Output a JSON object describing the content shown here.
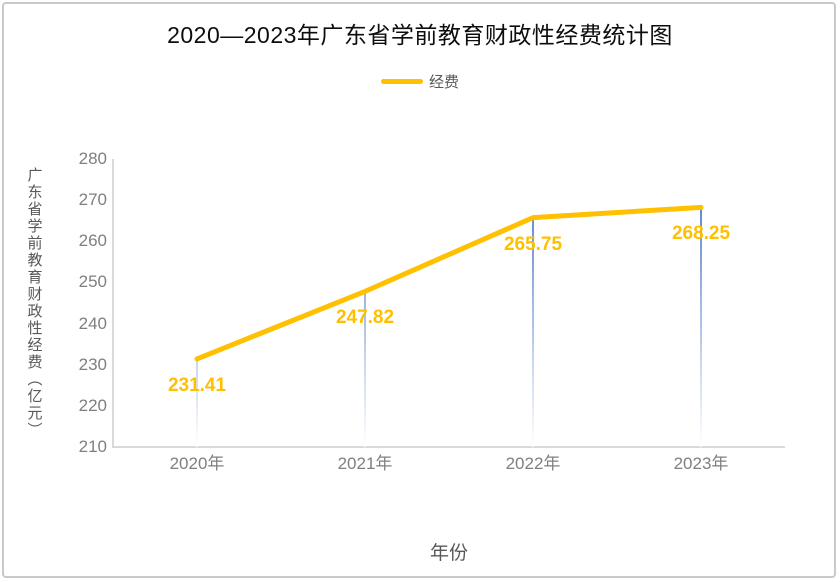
{
  "chart_data": {
    "type": "line",
    "title": "2020—2023年广东省学前教育财政性经费统计图",
    "legend_label": "经费",
    "xlabel": "年份",
    "ylabel": "广东省学前教育财政性经费（亿元）",
    "categories": [
      "2020年",
      "2021年",
      "2022年",
      "2023年"
    ],
    "series": [
      {
        "name": "经费",
        "values": [
          231.41,
          247.82,
          265.75,
          268.25
        ]
      }
    ],
    "data_labels": [
      "231.41",
      "247.82",
      "265.75",
      "268.25"
    ],
    "yticks": [
      210,
      220,
      230,
      240,
      250,
      260,
      270,
      280
    ],
    "ylim": [
      210,
      280
    ],
    "grid": false,
    "legend_position": "top",
    "colors": {
      "line": "#FFC000",
      "data_label": "#FFC000",
      "drop_line_top": "#4472C4",
      "drop_line_bottom": "#ffffff",
      "axis_line": "#d9d9d9",
      "tick_text": "#7f7f7f",
      "axis_title_text": "#595959",
      "title_text": "#0d0d0d"
    }
  }
}
